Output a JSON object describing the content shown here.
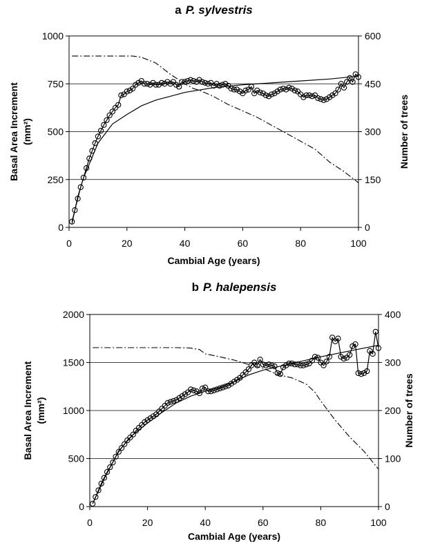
{
  "chart_data": [
    {
      "type": "line",
      "panel_letter": "a",
      "species": "P. sylvestris",
      "xlabel": "Cambial Age (years)",
      "ylabel_line1": "Basal Area Increment",
      "ylabel_line2": "(mm²)",
      "y2label": "Number of trees",
      "xlim": [
        0,
        100
      ],
      "ylim": [
        0,
        1000
      ],
      "y2lim": [
        0,
        600
      ],
      "xticks": [
        "0",
        "20",
        "40",
        "60",
        "80",
        "100"
      ],
      "yticks": [
        "0",
        "250",
        "500",
        "750",
        "1000"
      ],
      "y2ticks": [
        "0",
        "150",
        "300",
        "450",
        "600"
      ],
      "grid": "horizontal",
      "series": [
        {
          "style": "circles",
          "axis": "left",
          "x": [
            1,
            2,
            3,
            4,
            5,
            6,
            7,
            8,
            9,
            10,
            11,
            12,
            13,
            14,
            15,
            16,
            17,
            18,
            19,
            20,
            21,
            22,
            23,
            24,
            25,
            26,
            27,
            28,
            29,
            30,
            31,
            32,
            33,
            34,
            35,
            36,
            37,
            38,
            39,
            40,
            41,
            42,
            43,
            44,
            45,
            46,
            47,
            48,
            49,
            50,
            51,
            52,
            53,
            54,
            55,
            56,
            57,
            58,
            59,
            60,
            61,
            62,
            63,
            64,
            65,
            66,
            67,
            68,
            69,
            70,
            71,
            72,
            73,
            74,
            75,
            76,
            77,
            78,
            79,
            80,
            81,
            82,
            83,
            84,
            85,
            86,
            87,
            88,
            89,
            90,
            91,
            92,
            93,
            94,
            95,
            96,
            97,
            98,
            99,
            100
          ],
          "values": [
            30,
            90,
            150,
            210,
            260,
            310,
            360,
            400,
            440,
            475,
            505,
            535,
            560,
            585,
            605,
            625,
            640,
            690,
            695,
            710,
            715,
            725,
            745,
            755,
            765,
            750,
            750,
            745,
            755,
            745,
            745,
            755,
            750,
            760,
            750,
            760,
            745,
            735,
            760,
            760,
            765,
            770,
            765,
            760,
            770,
            760,
            755,
            750,
            755,
            740,
            750,
            740,
            745,
            750,
            740,
            725,
            720,
            720,
            710,
            700,
            715,
            720,
            735,
            700,
            715,
            705,
            700,
            690,
            685,
            695,
            700,
            710,
            720,
            725,
            720,
            730,
            725,
            715,
            710,
            695,
            680,
            690,
            690,
            685,
            690,
            675,
            670,
            665,
            670,
            680,
            690,
            700,
            720,
            750,
            730,
            760,
            780,
            760,
            800,
            785
          ]
        },
        {
          "style": "solid",
          "axis": "left",
          "x": [
            1,
            3,
            5,
            10,
            15,
            20,
            25,
            30,
            35,
            40,
            50,
            60,
            70,
            80,
            90,
            100
          ],
          "values": [
            20,
            160,
            260,
            440,
            540,
            590,
            635,
            665,
            685,
            705,
            730,
            745,
            755,
            765,
            775,
            790
          ]
        },
        {
          "style": "dashdot",
          "axis": "right",
          "x": [
            1,
            5,
            10,
            15,
            20,
            22,
            25,
            30,
            35,
            40,
            43,
            45,
            50,
            55,
            60,
            65,
            70,
            75,
            80,
            85,
            90,
            95,
            100
          ],
          "values": [
            537,
            537,
            537,
            537,
            537,
            537,
            533,
            515,
            480,
            450,
            435,
            430,
            410,
            385,
            365,
            345,
            320,
            295,
            270,
            245,
            205,
            175,
            140
          ]
        }
      ]
    },
    {
      "type": "line",
      "panel_letter": "b",
      "species": "P. halepensis",
      "xlabel": "Cambial Age (years)",
      "ylabel_line1": "Basal Area Increment",
      "ylabel_line2": "(mm²)",
      "y2label": "Number of trees",
      "xlim": [
        0,
        100
      ],
      "ylim": [
        0,
        2000
      ],
      "y2lim": [
        0,
        400
      ],
      "xticks": [
        "0",
        "20",
        "40",
        "60",
        "80",
        "100"
      ],
      "yticks": [
        "0",
        "500",
        "1000",
        "1500",
        "2000"
      ],
      "y2ticks": [
        "0",
        "100",
        "200",
        "300",
        "400"
      ],
      "grid": "horizontal",
      "series": [
        {
          "style": "circles",
          "axis": "left",
          "x": [
            1,
            2,
            3,
            4,
            5,
            6,
            7,
            8,
            9,
            10,
            11,
            12,
            13,
            14,
            15,
            16,
            17,
            18,
            19,
            20,
            21,
            22,
            23,
            24,
            25,
            26,
            27,
            28,
            29,
            30,
            31,
            32,
            33,
            34,
            35,
            36,
            37,
            38,
            39,
            40,
            41,
            42,
            43,
            44,
            45,
            46,
            47,
            48,
            49,
            50,
            51,
            52,
            53,
            54,
            55,
            56,
            57,
            58,
            59,
            60,
            61,
            62,
            63,
            64,
            65,
            66,
            67,
            68,
            69,
            70,
            71,
            72,
            73,
            74,
            75,
            76,
            77,
            78,
            79,
            80,
            81,
            82,
            83,
            84,
            85,
            86,
            87,
            88,
            89,
            90,
            91,
            92,
            93,
            94,
            95,
            96,
            97,
            98,
            99,
            100
          ],
          "values": [
            30,
            100,
            170,
            240,
            300,
            360,
            410,
            460,
            520,
            570,
            610,
            650,
            690,
            720,
            750,
            790,
            820,
            850,
            880,
            900,
            920,
            940,
            960,
            990,
            1020,
            1050,
            1080,
            1090,
            1100,
            1110,
            1130,
            1150,
            1170,
            1190,
            1220,
            1210,
            1200,
            1180,
            1230,
            1240,
            1200,
            1200,
            1210,
            1220,
            1230,
            1240,
            1250,
            1260,
            1280,
            1300,
            1320,
            1340,
            1370,
            1400,
            1430,
            1470,
            1500,
            1470,
            1530,
            1480,
            1470,
            1480,
            1470,
            1460,
            1390,
            1380,
            1450,
            1470,
            1490,
            1490,
            1480,
            1480,
            1470,
            1470,
            1480,
            1490,
            1520,
            1560,
            1550,
            1500,
            1470,
            1510,
            1560,
            1760,
            1720,
            1750,
            1560,
            1540,
            1550,
            1580,
            1670,
            1690,
            1390,
            1380,
            1390,
            1410,
            1620,
            1590,
            1820,
            1650
          ]
        },
        {
          "style": "solid",
          "axis": "left",
          "x": [
            1,
            5,
            10,
            15,
            20,
            25,
            30,
            35,
            40,
            45,
            50,
            55,
            60,
            70,
            80,
            90,
            100
          ],
          "values": [
            30,
            290,
            580,
            750,
            870,
            980,
            1080,
            1150,
            1200,
            1240,
            1300,
            1370,
            1420,
            1490,
            1560,
            1620,
            1680
          ]
        },
        {
          "style": "dashdot",
          "axis": "right",
          "x": [
            1,
            10,
            20,
            30,
            35,
            38,
            40,
            45,
            50,
            55,
            60,
            65,
            70,
            75,
            78,
            80,
            85,
            90,
            95,
            100
          ],
          "values": [
            331,
            331,
            331,
            331,
            330,
            327,
            318,
            312,
            305,
            296,
            288,
            275,
            268,
            255,
            238,
            220,
            180,
            145,
            115,
            78
          ]
        }
      ]
    }
  ]
}
